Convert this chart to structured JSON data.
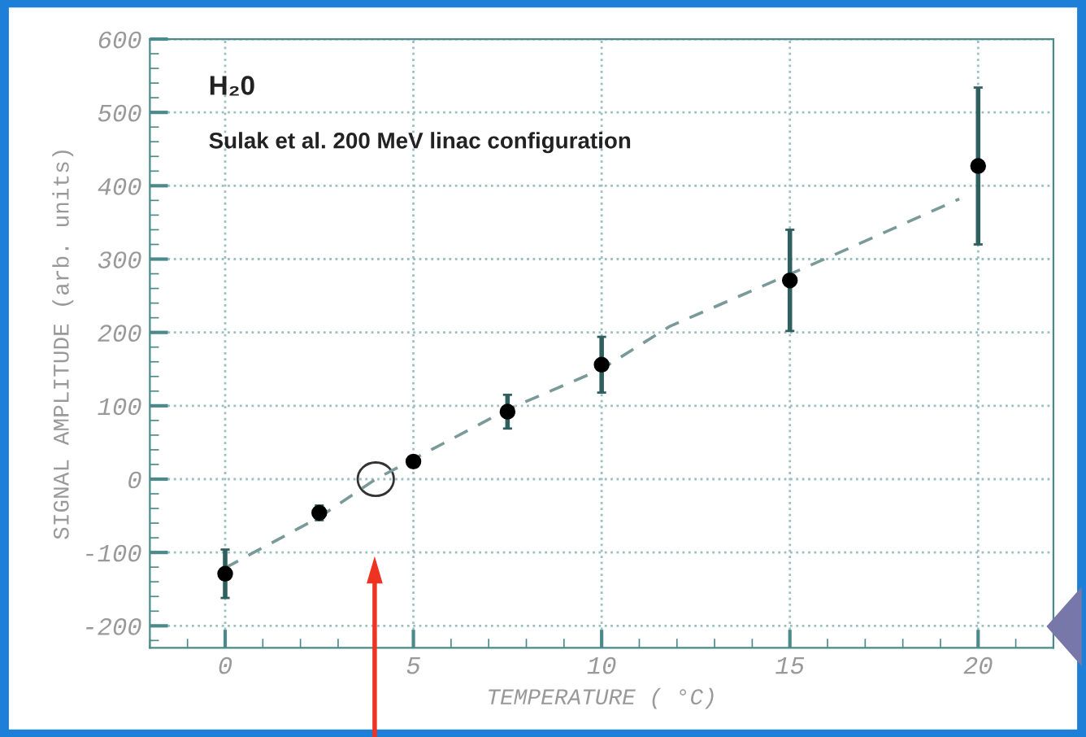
{
  "chart_data": {
    "type": "scatter",
    "xlabel": "TEMPERATURE ( °C)",
    "ylabel": "SIGNAL AMPLITUDE (arb. units)",
    "annotations": [
      "H₂0",
      "Sulak et al. 200 MeV linac configuration"
    ],
    "series": [
      {
        "color": "#000000",
        "x": [
          0,
          2.5,
          5,
          7.5,
          10,
          15,
          20
        ],
        "values": [
          -129,
          -46,
          24,
          92,
          156,
          271,
          427
        ],
        "errors": [
          33,
          10,
          null,
          23,
          38,
          69,
          107
        ],
        "marker": "circle"
      },
      {
        "type": "line",
        "color": "#7a9a9a",
        "x": [
          0,
          2.5,
          4,
          7.5,
          10,
          11.8,
          16.1,
          19.5
        ],
        "values": [
          -121,
          -52,
          0,
          95,
          150,
          208,
          304,
          382
        ],
        "line_style": "dashed",
        "marker": "none"
      }
    ],
    "xlim": [
      -2,
      22
    ],
    "ylim": [
      -230,
      600
    ],
    "xticks": [
      0,
      5,
      10,
      15,
      20
    ],
    "yticks": [
      -200,
      -100,
      0,
      100,
      200,
      300,
      400,
      500,
      600
    ],
    "grid": true,
    "legend": false
  }
}
